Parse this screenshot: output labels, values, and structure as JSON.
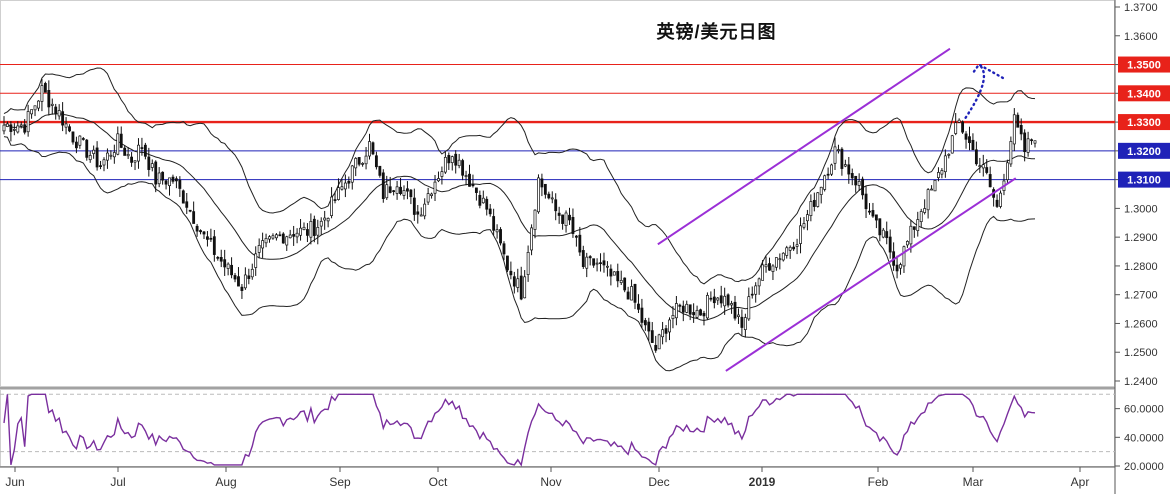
{
  "chart_data": [
    {
      "type": "candlestick",
      "title": "英镑/美元日图",
      "x_tick_labels": [
        "Jun",
        "Jul",
        "Aug",
        "Sep",
        "Oct",
        "Nov",
        "Dec",
        "2019",
        "Feb",
        "Mar",
        "Apr"
      ],
      "y_tick_labels": [
        "1.2400",
        "1.2500",
        "1.2600",
        "1.2700",
        "1.2800",
        "1.2900",
        "1.3000",
        "1.3100",
        "1.3200",
        "1.3300",
        "1.3400",
        "1.3500",
        "1.3600",
        "1.3700"
      ],
      "ylim": [
        1.2385,
        1.3725
      ],
      "horizontal_levels": [
        {
          "value": 1.35,
          "label": "1.3500",
          "color": "#e8221a",
          "style": "thin"
        },
        {
          "value": 1.34,
          "label": "1.3400",
          "color": "#e8221a",
          "style": "thin"
        },
        {
          "value": 1.33,
          "label": "1.3300",
          "color": "#e8221a",
          "style": "thick"
        },
        {
          "value": 1.32,
          "label": "1.3200",
          "color": "#1f22b8",
          "style": "thin"
        },
        {
          "value": 1.31,
          "label": "1.3100",
          "color": "#1f22b8",
          "style": "thin"
        }
      ],
      "channel_lines": [
        {
          "x_start": 0.59,
          "y_start": 1.2875,
          "x_end": 0.852,
          "y_end": 1.3555,
          "color": "#9b2fd6"
        },
        {
          "x_start": 0.651,
          "y_start": 1.2435,
          "x_end": 0.911,
          "y_end": 1.3105,
          "color": "#9b2fd6"
        }
      ],
      "projection": {
        "color": "#1f22b8",
        "style": "dotted",
        "points": [
          [
            0.866,
            1.3315
          ],
          [
            0.891,
            1.346
          ],
          [
            0.878,
            1.35
          ],
          [
            0.901,
            1.345
          ]
        ]
      },
      "candles": [],
      "bollinger": {
        "middle": [],
        "upper": [],
        "lower": []
      },
      "grid": false
    },
    {
      "type": "line",
      "title": "",
      "y_tick_labels": [
        "20.0000",
        "40.0000",
        "60.0000"
      ],
      "ylim": [
        20,
        73
      ],
      "reference_lines": [
        70,
        30
      ],
      "series": [
        {
          "color": "#7a2f9e",
          "values": []
        }
      ]
    }
  ],
  "palette": {
    "bull_candle": "#ffffff",
    "bear_candle": "#111111",
    "bands": "#222222",
    "axis_text": "#333333"
  }
}
